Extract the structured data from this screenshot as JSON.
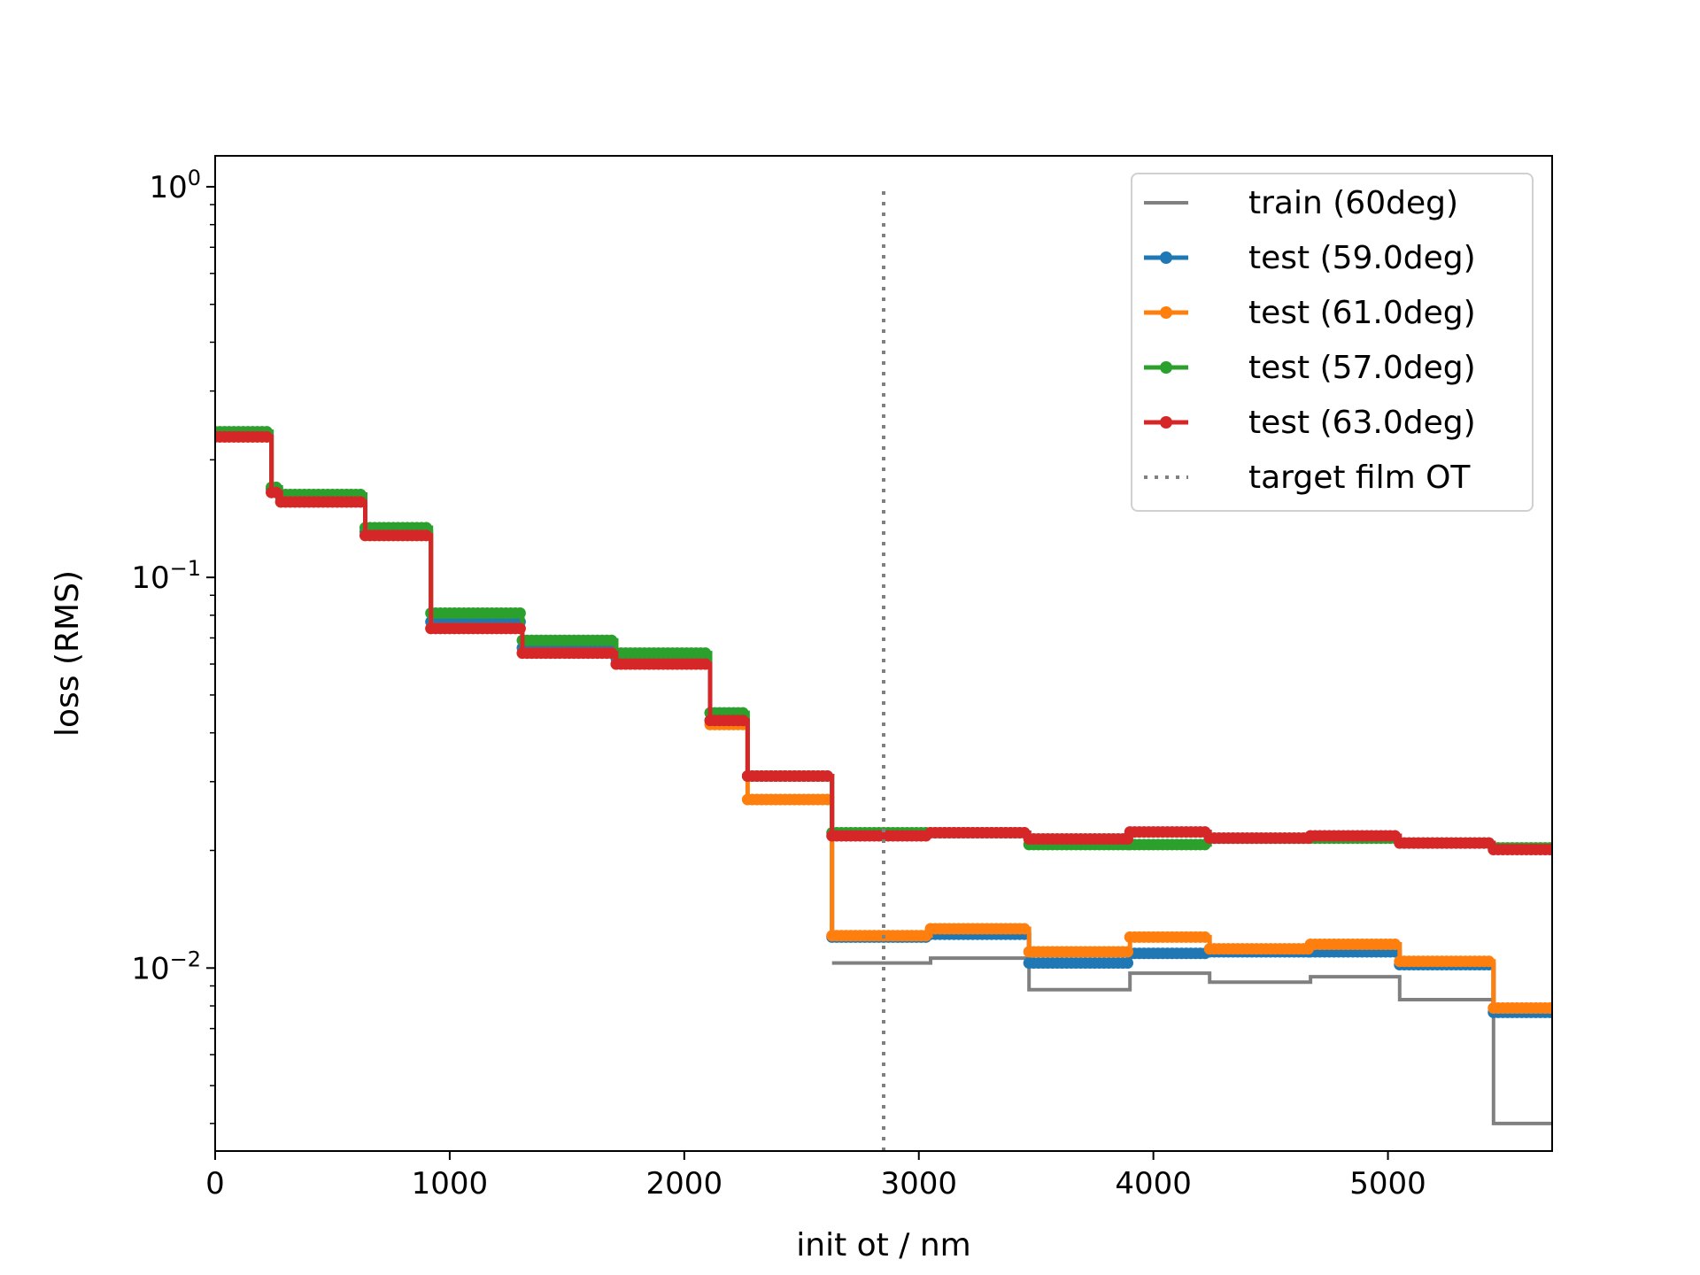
{
  "chart_data": {
    "type": "line",
    "title": "",
    "xlabel": "init ot / nm",
    "ylabel": "loss (RMS)",
    "xlim": [
      0,
      5700
    ],
    "ylim": [
      0.0034,
      1.2
    ],
    "yscale": "log",
    "grid": false,
    "legend_position": "upper right",
    "x_ticks": [
      0,
      1000,
      2000,
      3000,
      4000,
      5000
    ],
    "x_tick_labels": [
      "0",
      "1000",
      "2000",
      "3000",
      "4000",
      "5000"
    ],
    "y_ticks": [
      {
        "value": 1,
        "base": "10",
        "exp": "0"
      },
      {
        "value": 0.1,
        "base": "10",
        "exp": "−1"
      },
      {
        "value": 0.01,
        "base": "10",
        "exp": "−2"
      }
    ],
    "target_ot": 2850,
    "target_range": [
      0.0034,
      1.0
    ],
    "steps": [
      {
        "start": 0,
        "end": 240,
        "values": [
          null,
          0.235,
          0.229,
          0.236,
          0.229
        ]
      },
      {
        "start": 240,
        "end": 280,
        "values": [
          null,
          0.168,
          0.165,
          0.17,
          0.165
        ]
      },
      {
        "start": 280,
        "end": 640,
        "values": [
          null,
          0.16,
          0.156,
          0.163,
          0.156
        ]
      },
      {
        "start": 640,
        "end": 920,
        "values": [
          null,
          0.131,
          0.128,
          0.134,
          0.128
        ]
      },
      {
        "start": 920,
        "end": 1310,
        "values": [
          null,
          0.077,
          0.074,
          0.081,
          0.074
        ]
      },
      {
        "start": 1310,
        "end": 1710,
        "values": [
          null,
          0.066,
          0.064,
          0.069,
          0.064
        ]
      },
      {
        "start": 1710,
        "end": 2110,
        "values": [
          null,
          0.062,
          0.06,
          0.064,
          0.06
        ]
      },
      {
        "start": 2110,
        "end": 2270,
        "values": [
          null,
          0.043,
          0.042,
          0.045,
          0.043
        ]
      },
      {
        "start": 2270,
        "end": 2630,
        "values": [
          null,
          0.031,
          0.027,
          0.031,
          0.031
        ]
      },
      {
        "start": 2630,
        "end": 3050,
        "values": [
          0.0103,
          0.012,
          0.0121,
          0.0222,
          0.0218
        ]
      },
      {
        "start": 3050,
        "end": 3470,
        "values": [
          0.0106,
          0.0122,
          0.0126,
          0.0222,
          0.0222
        ]
      },
      {
        "start": 3470,
        "end": 3900,
        "values": [
          0.0088,
          0.0103,
          0.011,
          0.0207,
          0.0214
        ]
      },
      {
        "start": 3900,
        "end": 4240,
        "values": [
          0.0097,
          0.0109,
          0.012,
          0.0207,
          0.0223
        ]
      },
      {
        "start": 4240,
        "end": 4670,
        "values": [
          0.0092,
          0.011,
          0.0112,
          0.0215,
          0.0215
        ]
      },
      {
        "start": 4670,
        "end": 5050,
        "values": [
          0.0095,
          0.011,
          0.0115,
          0.0215,
          0.0218
        ]
      },
      {
        "start": 5050,
        "end": 5450,
        "values": [
          0.0083,
          0.0102,
          0.0104,
          0.0209,
          0.0209
        ]
      },
      {
        "start": 5450,
        "end": 5700,
        "values": [
          0.004,
          0.0077,
          0.0079,
          0.0203,
          0.0201
        ]
      }
    ],
    "series": [
      {
        "name": "train (60deg)",
        "color": "#808080",
        "marker": false
      },
      {
        "name": "test (59.0deg)",
        "color": "#1f77b4",
        "marker": true
      },
      {
        "name": "test (61.0deg)",
        "color": "#ff7f0e",
        "marker": true
      },
      {
        "name": "test (57.0deg)",
        "color": "#2ca02c",
        "marker": true
      },
      {
        "name": "test (63.0deg)",
        "color": "#d62728",
        "marker": true
      }
    ],
    "reference_line": {
      "name": "target film OT",
      "color": "#808080",
      "style": "dotted"
    }
  }
}
